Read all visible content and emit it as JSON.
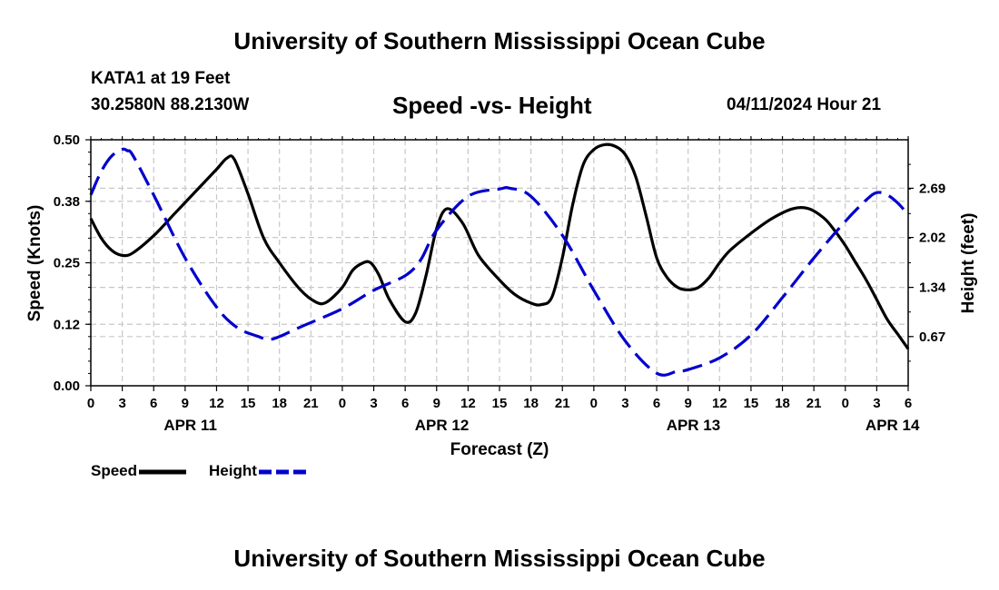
{
  "header": {
    "title": "University of Southern Mississippi Ocean Cube",
    "station": "KATA1 at 19 Feet",
    "coords": "30.2580N  88.2130W",
    "subtitle": "Speed -vs- Height",
    "datetime": "04/11/2024 Hour 21"
  },
  "footer": {
    "title": "University of Southern Mississippi Ocean Cube"
  },
  "legend": {
    "speed_label": "Speed",
    "height_label": "Height"
  },
  "colors": {
    "speed": "#000000",
    "height": "#0000cc",
    "grid": "#c8c8c8"
  },
  "chart_data": {
    "type": "line",
    "title": "Speed -vs- Height",
    "xlabel": "Forecast (Z)",
    "ylabel": "Speed (Knots)",
    "y2label": "Height (feet)",
    "xlim": [
      0,
      78
    ],
    "ylim": [
      0,
      0.5
    ],
    "y2lim": [
      0,
      3.35
    ],
    "x_ticks": [
      0,
      3,
      6,
      9,
      12,
      15,
      18,
      21,
      24,
      27,
      30,
      33,
      36,
      39,
      42,
      45,
      48,
      51,
      54,
      57,
      60,
      63,
      66,
      69,
      72,
      75,
      78
    ],
    "x_tick_labels": [
      "0",
      "3",
      "6",
      "9",
      "12",
      "15",
      "18",
      "21",
      "0",
      "3",
      "6",
      "9",
      "12",
      "15",
      "18",
      "21",
      "0",
      "3",
      "6",
      "9",
      "12",
      "15",
      "18",
      "21",
      "0",
      "3",
      "6"
    ],
    "day_labels": [
      {
        "x": 9.5,
        "label": "APR 11"
      },
      {
        "x": 33.5,
        "label": "APR 12"
      },
      {
        "x": 57.5,
        "label": "APR 13"
      },
      {
        "x": 76.5,
        "label": "APR 14"
      }
    ],
    "y_ticks": [
      0,
      0.125,
      0.25,
      0.375,
      0.5
    ],
    "y_tick_labels": [
      "0.00",
      "0.12",
      "0.25",
      "0.38",
      "0.50"
    ],
    "y2_ticks": [
      0.67,
      1.34,
      2.02,
      2.69
    ],
    "y2_tick_labels": [
      "0.67",
      "1.34",
      "2.02",
      "2.69"
    ],
    "grid": true,
    "series": [
      {
        "name": "Speed",
        "axis": "left",
        "style": "solid",
        "x": [
          0,
          1,
          2,
          3,
          4,
          6,
          8,
          10,
          12,
          13,
          13.7,
          15,
          16.5,
          18,
          20,
          21.5,
          22.5,
          24,
          25,
          26,
          26.7,
          27.5,
          28.5,
          30,
          31,
          32,
          33,
          34,
          35.5,
          37,
          39,
          40.5,
          42,
          43,
          44,
          45,
          46,
          47,
          48,
          49,
          50,
          51,
          52,
          53,
          54,
          55,
          56,
          57,
          58,
          59,
          60,
          61,
          63,
          65,
          67,
          68.5,
          70,
          71,
          72,
          73,
          74,
          75,
          76,
          77,
          78
        ],
        "values": [
          0.34,
          0.3,
          0.275,
          0.265,
          0.27,
          0.305,
          0.35,
          0.395,
          0.44,
          0.463,
          0.46,
          0.39,
          0.3,
          0.25,
          0.195,
          0.17,
          0.17,
          0.2,
          0.235,
          0.25,
          0.25,
          0.225,
          0.175,
          0.13,
          0.148,
          0.225,
          0.32,
          0.36,
          0.33,
          0.265,
          0.215,
          0.185,
          0.168,
          0.165,
          0.18,
          0.26,
          0.37,
          0.45,
          0.48,
          0.49,
          0.487,
          0.47,
          0.425,
          0.345,
          0.26,
          0.22,
          0.2,
          0.195,
          0.2,
          0.22,
          0.25,
          0.275,
          0.31,
          0.34,
          0.36,
          0.36,
          0.34,
          0.315,
          0.285,
          0.25,
          0.215,
          0.175,
          0.135,
          0.105,
          0.075
        ]
      },
      {
        "name": "Height",
        "axis": "right",
        "style": "dashed",
        "x": [
          0,
          1,
          2,
          3,
          3.5,
          4,
          6,
          9,
          12,
          14,
          16,
          17,
          18,
          20,
          24,
          27,
          30,
          31.5,
          33,
          36,
          39,
          40,
          42,
          45,
          48,
          51,
          54,
          56,
          57,
          60,
          63,
          66,
          69,
          72,
          74,
          75,
          76,
          77,
          78
        ],
        "values": [
          2.6,
          2.92,
          3.13,
          3.22,
          3.2,
          3.14,
          2.6,
          1.74,
          1.07,
          0.79,
          0.67,
          0.63,
          0.67,
          0.8,
          1.05,
          1.3,
          1.5,
          1.72,
          2.12,
          2.58,
          2.68,
          2.69,
          2.58,
          2.05,
          1.3,
          0.61,
          0.17,
          0.2,
          0.22,
          0.38,
          0.69,
          1.2,
          1.74,
          2.24,
          2.53,
          2.63,
          2.6,
          2.49,
          2.33
        ]
      }
    ]
  }
}
